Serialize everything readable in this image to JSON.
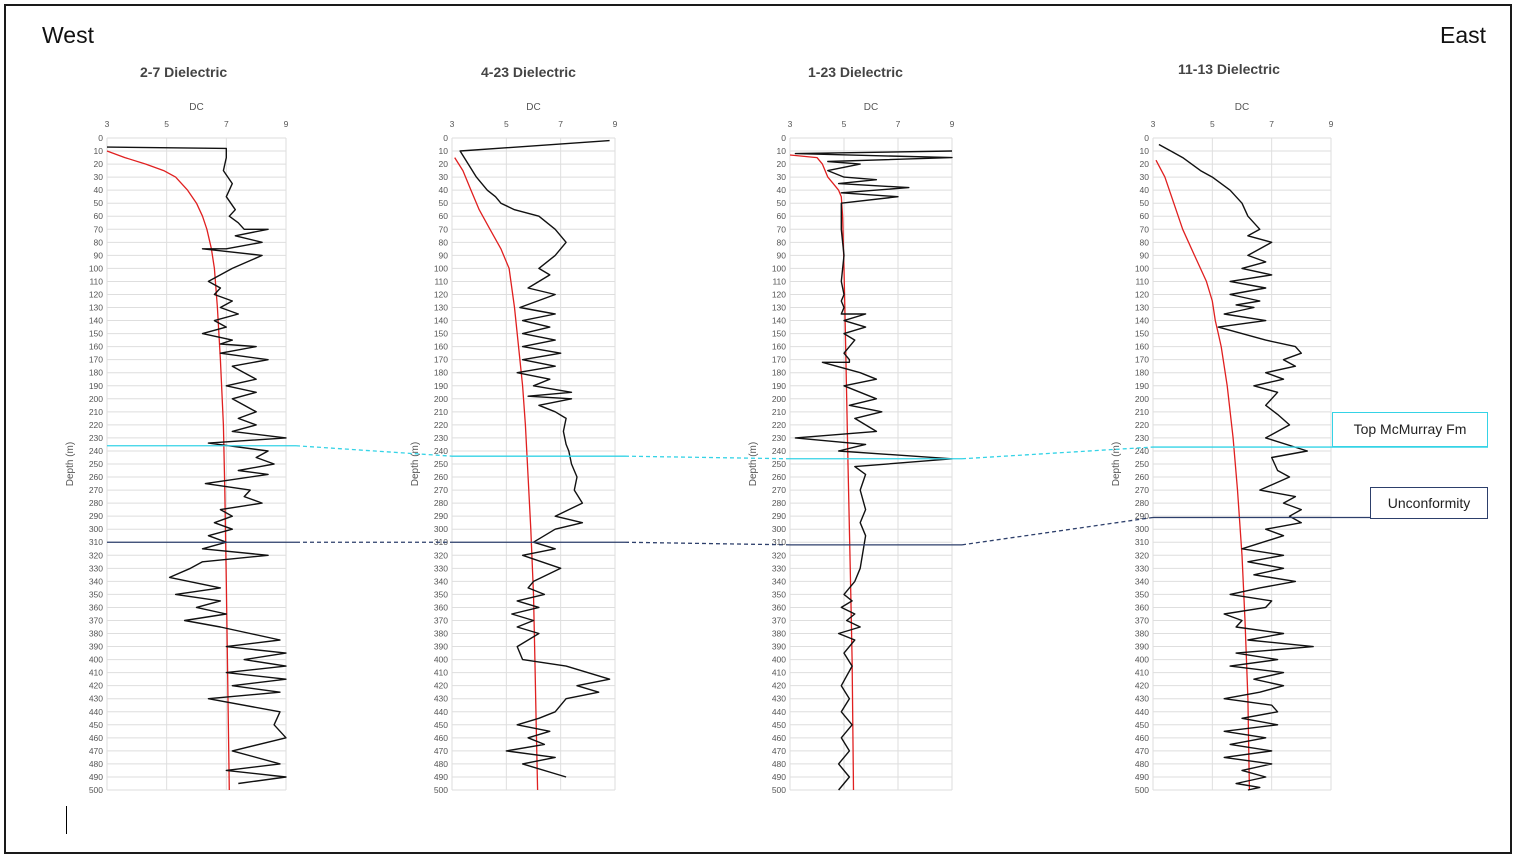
{
  "labels": {
    "west": "West",
    "east": "East"
  },
  "correlations": [
    {
      "label": "Top McMurray Fm",
      "color": "#35d3e6",
      "depths": [
        236,
        244,
        246,
        237
      ]
    },
    {
      "label": "Unconformity",
      "color": "#2d3f6b",
      "depths": [
        310,
        310,
        312,
        291
      ]
    }
  ],
  "chart_data": [
    {
      "type": "line",
      "title": "2-7 Dielectric",
      "xlabel": "DC",
      "ylabel": "Depth (m)",
      "xlim": [
        3,
        9
      ],
      "xticks": [
        3,
        5,
        7,
        9
      ],
      "ylim": [
        0,
        500
      ],
      "yticks": [
        0,
        10,
        20,
        30,
        40,
        50,
        60,
        70,
        80,
        90,
        100,
        110,
        120,
        130,
        140,
        150,
        160,
        170,
        180,
        190,
        200,
        210,
        220,
        230,
        240,
        250,
        260,
        270,
        280,
        290,
        300,
        310,
        320,
        330,
        340,
        350,
        360,
        370,
        380,
        390,
        400,
        410,
        420,
        430,
        440,
        450,
        460,
        470,
        480,
        490,
        500
      ],
      "grid": true,
      "series": [
        {
          "color": "#e02020",
          "x": [
            3,
            3.6,
            4.3,
            4.9,
            5.3,
            5.7,
            6.0,
            6.2,
            6.35,
            6.5,
            6.6,
            6.7,
            6.8,
            6.9,
            6.95,
            7.0,
            7.05,
            7.1
          ],
          "y": [
            10,
            15,
            20,
            25,
            30,
            40,
            50,
            60,
            70,
            85,
            100,
            130,
            170,
            220,
            270,
            340,
            420,
            500
          ]
        },
        {
          "color": "#111111",
          "x": [
            3,
            7.0,
            7.0,
            6.9,
            7.2,
            7.0,
            7.3,
            7.1,
            7.4,
            7.6,
            8.4,
            7.3,
            8.2,
            7.0,
            6.2,
            8.2,
            7.7,
            7.2,
            6.4,
            6.8,
            6.6,
            7.2,
            6.8,
            7.4,
            6.6,
            7.0,
            6.2,
            7.2,
            6.8,
            8.0,
            6.8,
            8.4,
            7.2,
            7.6,
            8.0,
            7.0,
            8.0,
            7.2,
            7.6,
            8.0,
            7.4,
            8.0,
            7.2,
            9.0,
            6.4,
            8.4,
            8.0,
            8.6,
            7.4,
            8.4,
            6.3,
            7.8,
            7.6,
            8.2,
            6.8,
            7.2,
            6.6,
            7.2,
            6.4,
            7.0,
            6.2,
            8.4,
            6.2,
            5.8,
            5.1,
            6.8,
            5.3,
            6.8,
            6.0,
            7.0,
            5.6,
            6.8,
            8.8,
            7.0,
            9.0,
            7.6,
            9.0,
            7.0,
            9.0,
            7.2,
            8.8,
            6.4,
            8.8,
            8.6,
            9.0,
            7.2,
            8.8,
            7.0,
            9.0,
            7.4
          ],
          "y": [
            7,
            8,
            15,
            25,
            35,
            45,
            55,
            60,
            65,
            70,
            70,
            75,
            80,
            85,
            85,
            90,
            95,
            100,
            110,
            115,
            120,
            125,
            130,
            135,
            140,
            145,
            150,
            155,
            158,
            160,
            165,
            170,
            175,
            180,
            185,
            190,
            195,
            200,
            205,
            210,
            215,
            220,
            225,
            230,
            234,
            240,
            245,
            250,
            255,
            258,
            265,
            270,
            275,
            280,
            285,
            290,
            295,
            300,
            305,
            310,
            315,
            320,
            325,
            330,
            337,
            345,
            350,
            355,
            360,
            365,
            370,
            375,
            385,
            390,
            395,
            400,
            405,
            410,
            415,
            420,
            425,
            430,
            440,
            450,
            460,
            470,
            480,
            485,
            490,
            495
          ]
        }
      ]
    },
    {
      "type": "line",
      "title": "4-23 Dielectric",
      "xlabel": "DC",
      "ylabel": "Depth (m)",
      "xlim": [
        3,
        9
      ],
      "xticks": [
        3,
        5,
        7,
        9
      ],
      "ylim": [
        0,
        500
      ],
      "yticks": [
        0,
        10,
        20,
        30,
        40,
        50,
        60,
        70,
        80,
        90,
        100,
        110,
        120,
        130,
        140,
        150,
        160,
        170,
        180,
        190,
        200,
        210,
        220,
        230,
        240,
        250,
        260,
        270,
        280,
        290,
        300,
        310,
        320,
        330,
        340,
        350,
        360,
        370,
        380,
        390,
        400,
        410,
        420,
        430,
        440,
        450,
        460,
        470,
        480,
        490,
        500
      ],
      "grid": true,
      "series": [
        {
          "color": "#e02020",
          "x": [
            3.1,
            3.4,
            3.7,
            4.0,
            4.4,
            4.8,
            5.1,
            5.3,
            5.5,
            5.6,
            5.7,
            5.8,
            5.9,
            6.0,
            6.05,
            6.1,
            6.15
          ],
          "y": [
            15,
            25,
            40,
            55,
            70,
            85,
            100,
            130,
            170,
            190,
            220,
            260,
            300,
            350,
            400,
            450,
            500
          ]
        },
        {
          "color": "#111111",
          "x": [
            8.8,
            3.3,
            3.6,
            3.9,
            4.3,
            4.6,
            4.8,
            5.3,
            6.2,
            6.8,
            7.2,
            6.8,
            6.2,
            6.6,
            5.8,
            6.8,
            5.5,
            6.8,
            5.6,
            6.6,
            5.6,
            6.8,
            5.6,
            7.0,
            5.6,
            6.8,
            5.4,
            6.6,
            6.0,
            7.4,
            5.8,
            7.4,
            6.2,
            6.8,
            7.2,
            7.1,
            7.2,
            7.3,
            7.4,
            7.6,
            7.5,
            7.8,
            6.8,
            7.8,
            6.8,
            6.0,
            6.8,
            5.6,
            7.0,
            6.0,
            5.8,
            6.4,
            5.4,
            6.2,
            5.2,
            6.0,
            5.4,
            6.2,
            5.4,
            5.6,
            7.2,
            8.8,
            7.6,
            8.4,
            7.2,
            6.8,
            6.2,
            5.4,
            6.6,
            5.8,
            6.4,
            5.0,
            6.8,
            5.6,
            7.2
          ],
          "y": [
            2,
            10,
            20,
            30,
            40,
            45,
            50,
            55,
            60,
            70,
            80,
            90,
            100,
            105,
            115,
            120,
            130,
            135,
            140,
            145,
            150,
            155,
            160,
            165,
            170,
            175,
            180,
            185,
            190,
            195,
            198,
            200,
            205,
            210,
            215,
            225,
            235,
            240,
            250,
            260,
            270,
            280,
            290,
            295,
            300,
            310,
            315,
            320,
            330,
            340,
            345,
            350,
            355,
            360,
            365,
            370,
            375,
            380,
            390,
            400,
            405,
            415,
            420,
            425,
            430,
            440,
            445,
            450,
            455,
            460,
            465,
            470,
            475,
            480,
            490
          ]
        }
      ]
    },
    {
      "type": "line",
      "title": "1-23 Dielectric",
      "xlabel": "DC",
      "ylabel": "Depth (m)",
      "xlim": [
        3,
        9
      ],
      "xticks": [
        3,
        5,
        7,
        9
      ],
      "ylim": [
        0,
        500
      ],
      "yticks": [
        0,
        10,
        20,
        30,
        40,
        50,
        60,
        70,
        80,
        90,
        100,
        110,
        120,
        130,
        140,
        150,
        160,
        170,
        180,
        190,
        200,
        210,
        220,
        230,
        240,
        250,
        260,
        270,
        280,
        290,
        300,
        310,
        320,
        330,
        340,
        350,
        360,
        370,
        380,
        390,
        400,
        410,
        420,
        430,
        440,
        450,
        460,
        470,
        480,
        490,
        500
      ],
      "grid": true,
      "series": [
        {
          "color": "#e02020",
          "x": [
            3,
            4.0,
            4.2,
            4.4,
            4.6,
            4.8,
            4.9,
            4.95,
            5.0,
            5.05,
            5.1,
            5.15,
            5.2,
            5.25,
            5.3,
            5.35
          ],
          "y": [
            13,
            15,
            20,
            30,
            35,
            40,
            45,
            60,
            100,
            150,
            200,
            250,
            300,
            350,
            400,
            500
          ]
        },
        {
          "color": "#111111",
          "x": [
            9,
            3.2,
            9,
            4.4,
            5.6,
            4.4,
            5.0,
            6.2,
            4.8,
            7.4,
            4.9,
            7.0,
            4.9,
            4.9,
            5.0,
            4.9,
            5.0,
            4.9,
            5.0,
            4.9,
            5.8,
            5.0,
            5.8,
            5.0,
            5.4,
            5.0,
            5.2,
            5.2,
            4.2,
            5.6,
            6.2,
            5.0,
            6.2,
            5.2,
            6.4,
            5.4,
            6.2,
            3.2,
            5.8,
            4.8,
            9.0,
            5.4,
            5.8,
            5.6,
            5.8,
            5.6,
            5.8,
            5.6,
            5.4,
            5.0,
            5.3,
            4.9,
            5.4,
            5.1,
            5.6,
            4.8,
            5.4,
            5.0,
            5.3,
            4.9,
            5.2,
            4.9,
            5.3,
            4.9,
            5.2,
            4.8,
            5.2,
            4.8
          ],
          "y": [
            10,
            12,
            15,
            18,
            20,
            25,
            30,
            32,
            35,
            38,
            42,
            45,
            50,
            70,
            90,
            110,
            120,
            125,
            130,
            135,
            135,
            140,
            145,
            150,
            155,
            165,
            170,
            172,
            172,
            180,
            185,
            190,
            200,
            205,
            210,
            215,
            225,
            230,
            235,
            240,
            246,
            252,
            258,
            270,
            285,
            295,
            305,
            330,
            340,
            350,
            355,
            360,
            365,
            370,
            375,
            380,
            385,
            395,
            405,
            420,
            430,
            440,
            450,
            460,
            470,
            480,
            490,
            500
          ]
        }
      ]
    },
    {
      "type": "line",
      "title": "11-13 Dielectric",
      "xlabel": "DC",
      "ylabel": "Depth (m)",
      "xlim": [
        3,
        9
      ],
      "xticks": [
        3,
        5,
        7,
        9
      ],
      "ylim": [
        0,
        500
      ],
      "yticks": [
        0,
        10,
        20,
        30,
        40,
        50,
        60,
        70,
        80,
        90,
        100,
        110,
        120,
        130,
        140,
        150,
        160,
        170,
        180,
        190,
        200,
        210,
        220,
        230,
        240,
        250,
        260,
        270,
        280,
        290,
        300,
        310,
        320,
        330,
        340,
        350,
        360,
        370,
        380,
        390,
        400,
        410,
        420,
        430,
        440,
        450,
        460,
        470,
        480,
        490,
        500
      ],
      "grid": true,
      "series": [
        {
          "color": "#e02020",
          "x": [
            3.1,
            3.4,
            3.7,
            4.0,
            4.4,
            4.8,
            5.0,
            5.1,
            5.2,
            5.3,
            5.5,
            5.7,
            5.85,
            6.0,
            6.1,
            6.2,
            6.25
          ],
          "y": [
            17,
            30,
            50,
            70,
            90,
            110,
            125,
            140,
            150,
            160,
            190,
            230,
            270,
            320,
            370,
            430,
            500
          ]
        },
        {
          "color": "#111111",
          "x": [
            3.2,
            3.6,
            4.0,
            4.3,
            4.6,
            5.0,
            5.6,
            6.0,
            6.2,
            6.6,
            6.2,
            7.0,
            6.2,
            6.8,
            6.0,
            7.0,
            5.6,
            6.8,
            5.6,
            6.6,
            5.8,
            6.4,
            5.4,
            6.8,
            5.2,
            6.0,
            6.8,
            7.8,
            8.0,
            7.4,
            7.8,
            6.8,
            7.4,
            6.4,
            7.2,
            6.8,
            7.2,
            7.6,
            6.8,
            8.2,
            7.0,
            7.2,
            7.6,
            6.6,
            7.8,
            7.4,
            8.0,
            7.6,
            8.0,
            6.8,
            7.4,
            6.0,
            7.4,
            6.2,
            7.4,
            6.4,
            7.8,
            6.6,
            5.6,
            7.0,
            6.8,
            5.4,
            6.0,
            5.8,
            7.4,
            6.2,
            8.4,
            5.8,
            7.2,
            5.6,
            7.4,
            6.4,
            7.4,
            6.6,
            5.4,
            7.0,
            7.2,
            6.0,
            7.2,
            5.4,
            6.8,
            5.6,
            7.0,
            5.4,
            7.0,
            6.0,
            6.8,
            5.8,
            6.6,
            6.2
          ],
          "y": [
            5,
            10,
            15,
            20,
            25,
            30,
            40,
            50,
            60,
            70,
            75,
            80,
            90,
            95,
            100,
            105,
            110,
            115,
            120,
            125,
            128,
            130,
            135,
            140,
            145,
            150,
            155,
            160,
            165,
            170,
            175,
            180,
            185,
            190,
            195,
            205,
            212,
            220,
            230,
            240,
            245,
            255,
            260,
            270,
            275,
            280,
            285,
            290,
            295,
            300,
            305,
            315,
            320,
            325,
            330,
            335,
            340,
            345,
            350,
            355,
            360,
            365,
            370,
            375,
            380,
            385,
            390,
            395,
            400,
            405,
            410,
            415,
            420,
            425,
            430,
            435,
            440,
            445,
            450,
            455,
            460,
            465,
            470,
            475,
            480,
            485,
            490,
            495,
            498,
            500
          ]
        }
      ]
    }
  ]
}
